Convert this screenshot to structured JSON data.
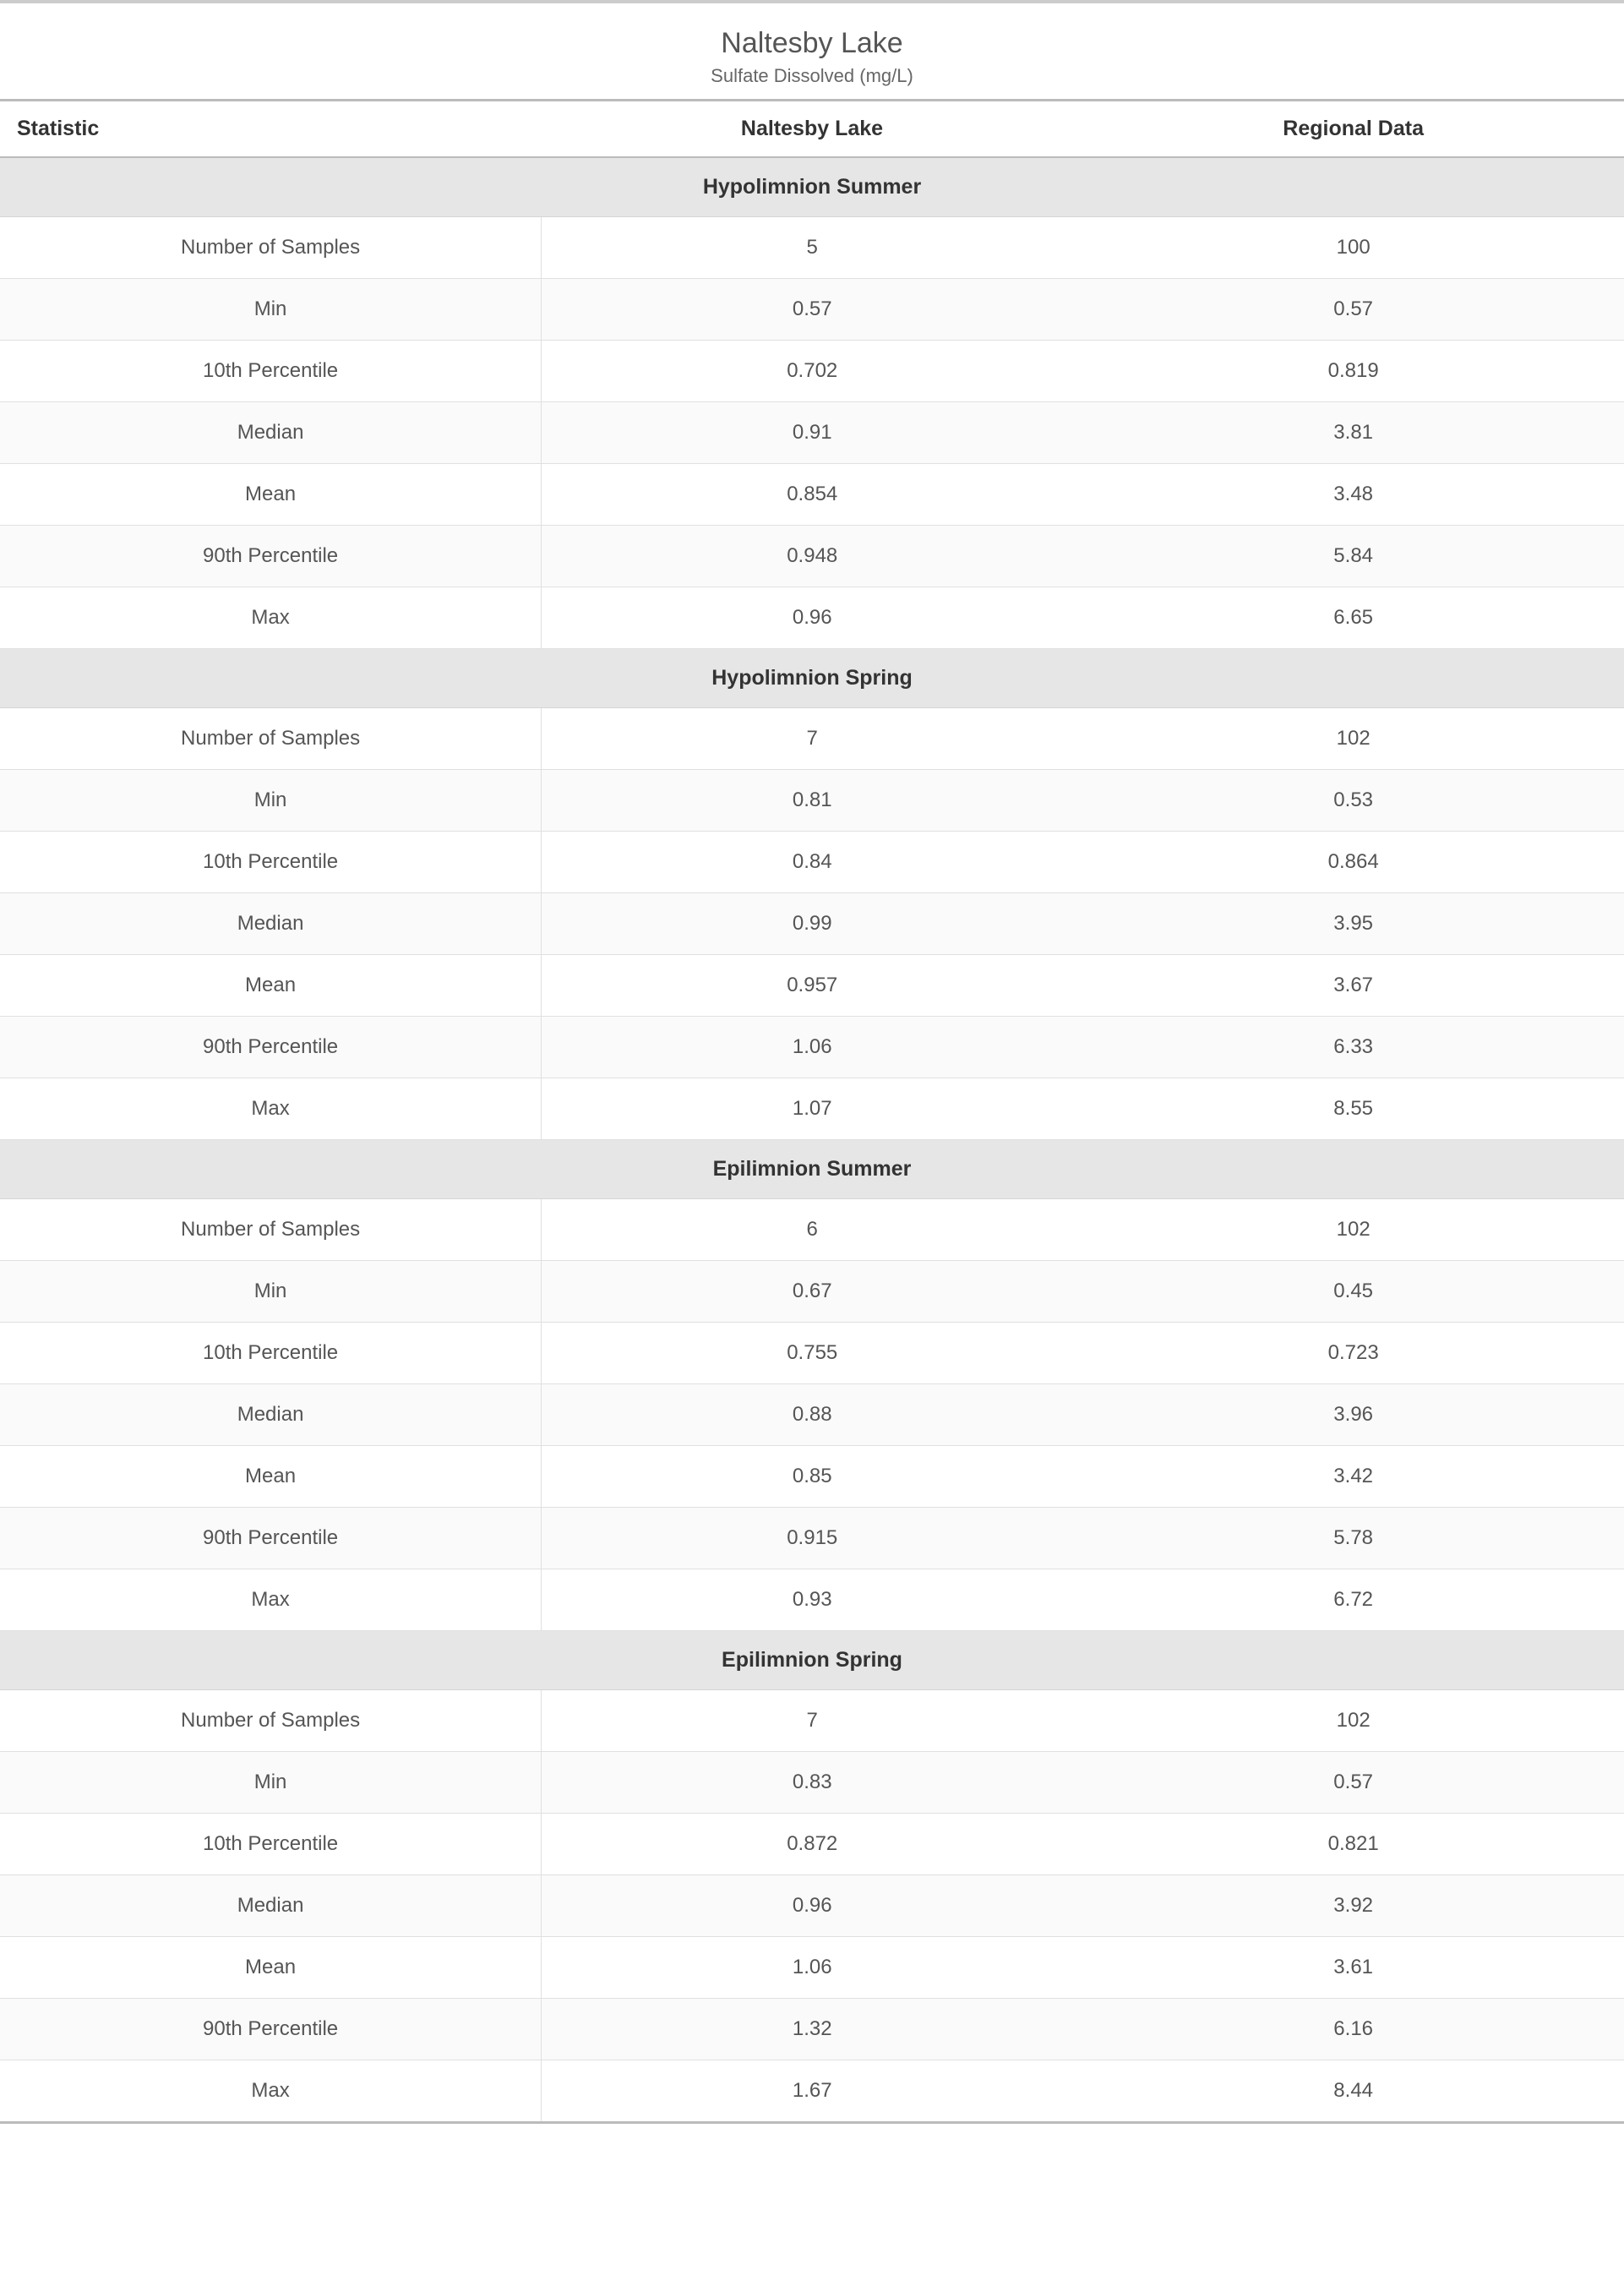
{
  "title": "Naltesby Lake",
  "subtitle": "Sulfate Dissolved (mg/L)",
  "columns": {
    "stat": "Statistic",
    "a": "Naltesby Lake",
    "b": "Regional Data"
  },
  "stat_labels": {
    "samples": "Number of Samples",
    "min": "Min",
    "p10": "10th Percentile",
    "median": "Median",
    "mean": "Mean",
    "p90": "90th Percentile",
    "max": "Max"
  },
  "sections": [
    {
      "name": "Hypolimnion Summer",
      "rows": [
        {
          "k": "samples",
          "a": "5",
          "b": "100"
        },
        {
          "k": "min",
          "a": "0.57",
          "b": "0.57"
        },
        {
          "k": "p10",
          "a": "0.702",
          "b": "0.819"
        },
        {
          "k": "median",
          "a": "0.91",
          "b": "3.81"
        },
        {
          "k": "mean",
          "a": "0.854",
          "b": "3.48"
        },
        {
          "k": "p90",
          "a": "0.948",
          "b": "5.84"
        },
        {
          "k": "max",
          "a": "0.96",
          "b": "6.65"
        }
      ]
    },
    {
      "name": "Hypolimnion Spring",
      "rows": [
        {
          "k": "samples",
          "a": "7",
          "b": "102"
        },
        {
          "k": "min",
          "a": "0.81",
          "b": "0.53"
        },
        {
          "k": "p10",
          "a": "0.84",
          "b": "0.864"
        },
        {
          "k": "median",
          "a": "0.99",
          "b": "3.95"
        },
        {
          "k": "mean",
          "a": "0.957",
          "b": "3.67"
        },
        {
          "k": "p90",
          "a": "1.06",
          "b": "6.33"
        },
        {
          "k": "max",
          "a": "1.07",
          "b": "8.55"
        }
      ]
    },
    {
      "name": "Epilimnion Summer",
      "rows": [
        {
          "k": "samples",
          "a": "6",
          "b": "102"
        },
        {
          "k": "min",
          "a": "0.67",
          "b": "0.45"
        },
        {
          "k": "p10",
          "a": "0.755",
          "b": "0.723"
        },
        {
          "k": "median",
          "a": "0.88",
          "b": "3.96"
        },
        {
          "k": "mean",
          "a": "0.85",
          "b": "3.42"
        },
        {
          "k": "p90",
          "a": "0.915",
          "b": "5.78"
        },
        {
          "k": "max",
          "a": "0.93",
          "b": "6.72"
        }
      ]
    },
    {
      "name": "Epilimnion Spring",
      "rows": [
        {
          "k": "samples",
          "a": "7",
          "b": "102"
        },
        {
          "k": "min",
          "a": "0.83",
          "b": "0.57"
        },
        {
          "k": "p10",
          "a": "0.872",
          "b": "0.821"
        },
        {
          "k": "median",
          "a": "0.96",
          "b": "3.92"
        },
        {
          "k": "mean",
          "a": "1.06",
          "b": "3.61"
        },
        {
          "k": "p90",
          "a": "1.32",
          "b": "6.16"
        },
        {
          "k": "max",
          "a": "1.67",
          "b": "8.44"
        }
      ]
    }
  ]
}
